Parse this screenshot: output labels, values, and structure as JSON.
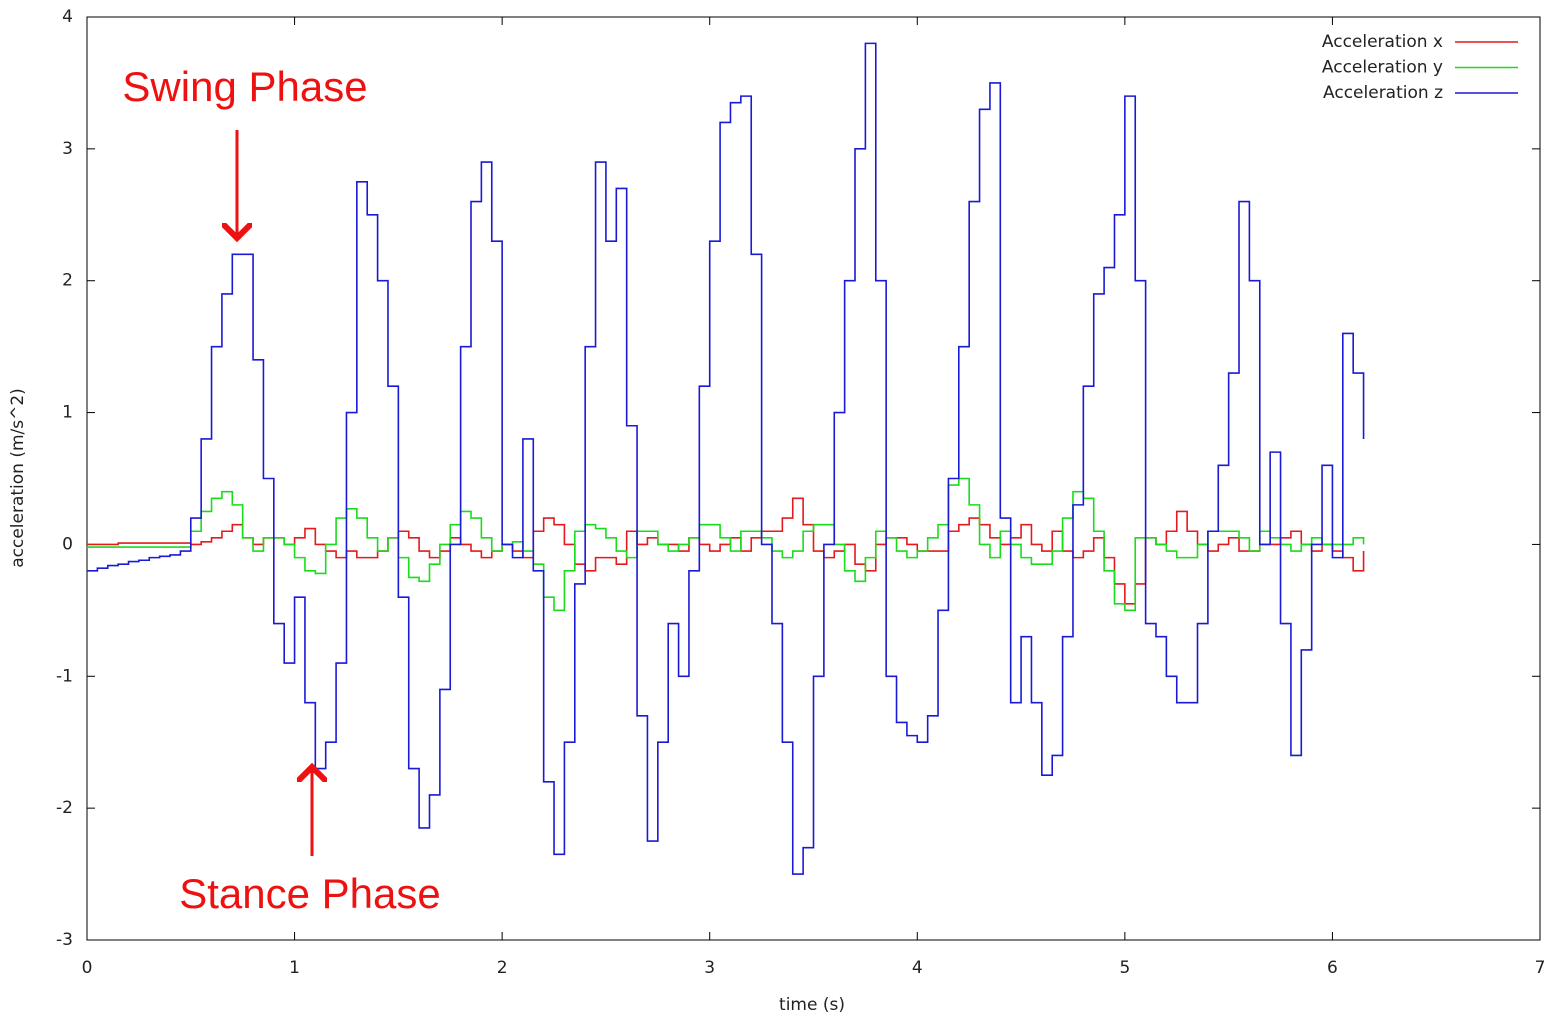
{
  "chart_data": {
    "type": "line",
    "style": "steps",
    "xlabel": "time (s)",
    "ylabel": "acceleration (m/s^2)",
    "xlim": [
      0,
      7
    ],
    "xticks": [
      0,
      1,
      2,
      3,
      4,
      5,
      6,
      7
    ],
    "ylim": [
      -3,
      4
    ],
    "yticks": [
      -3,
      -2,
      -1,
      0,
      1,
      2,
      3,
      4
    ],
    "legend": "top-right",
    "annotations": [
      "Swing Phase",
      "Stance Phase"
    ],
    "annotation_color": "#ee1111",
    "x": [
      0,
      0.05,
      0.1,
      0.15,
      0.2,
      0.25,
      0.3,
      0.35,
      0.4,
      0.45,
      0.5,
      0.55,
      0.6,
      0.65,
      0.7,
      0.75,
      0.8,
      0.85,
      0.9,
      0.95,
      1,
      1.05,
      1.1,
      1.15,
      1.2,
      1.25,
      1.3,
      1.35,
      1.4,
      1.45,
      1.5,
      1.55,
      1.6,
      1.65,
      1.7,
      1.75,
      1.8,
      1.85,
      1.9,
      1.95,
      2,
      2.05,
      2.1,
      2.15,
      2.2,
      2.25,
      2.3,
      2.35,
      2.4,
      2.45,
      2.5,
      2.55,
      2.6,
      2.65,
      2.7,
      2.75,
      2.8,
      2.85,
      2.9,
      2.95,
      3,
      3.05,
      3.1,
      3.15,
      3.2,
      3.25,
      3.3,
      3.35,
      3.4,
      3.45,
      3.5,
      3.55,
      3.6,
      3.65,
      3.7,
      3.75,
      3.8,
      3.85,
      3.9,
      3.95,
      4,
      4.05,
      4.1,
      4.15,
      4.2,
      4.25,
      4.3,
      4.35,
      4.4,
      4.45,
      4.5,
      4.55,
      4.6,
      4.65,
      4.7,
      4.75,
      4.8,
      4.85,
      4.9,
      4.95,
      5,
      5.05,
      5.1,
      5.15,
      5.2,
      5.25,
      5.3,
      5.35,
      5.4,
      5.45,
      5.5,
      5.55,
      5.6,
      5.65,
      5.7,
      5.75,
      5.8,
      5.85,
      5.9,
      5.95,
      6,
      6.05,
      6.1,
      6.15
    ],
    "series": [
      {
        "name": "Acceleration x",
        "color": "#e41a1c",
        "values": [
          0,
          0,
          0,
          0.01,
          0.01,
          0.01,
          0.01,
          0.01,
          0.01,
          0.01,
          0,
          0.02,
          0.05,
          0.1,
          0.15,
          0.05,
          0,
          0.05,
          0.05,
          0,
          0.05,
          0.12,
          0,
          -0.05,
          -0.1,
          -0.05,
          -0.1,
          -0.1,
          -0.05,
          0.05,
          0.1,
          0.05,
          -0.05,
          -0.1,
          -0.05,
          0.05,
          0,
          -0.05,
          -0.1,
          -0.05,
          0,
          -0.05,
          -0.1,
          0.1,
          0.2,
          0.15,
          0,
          -0.15,
          -0.2,
          -0.1,
          -0.1,
          -0.15,
          0.1,
          0,
          0.05,
          0,
          0,
          -0.05,
          0.05,
          0,
          -0.05,
          0,
          0.05,
          -0.05,
          0.05,
          0.1,
          0.1,
          0.2,
          0.35,
          0.15,
          -0.05,
          -0.1,
          -0.05,
          0,
          -0.15,
          -0.2,
          0,
          0.05,
          0.05,
          0,
          -0.05,
          -0.05,
          -0.05,
          0.1,
          0.15,
          0.2,
          0.15,
          0.05,
          0,
          0.05,
          0.15,
          0,
          -0.05,
          0.1,
          -0.05,
          -0.1,
          -0.05,
          0.05,
          -0.1,
          -0.3,
          -0.45,
          -0.3,
          0.05,
          0,
          0.1,
          0.25,
          0.1,
          0,
          -0.05,
          0,
          0.05,
          -0.05,
          -0.05,
          0,
          0,
          0.05,
          0.1,
          0,
          -0.05,
          0,
          -0.05,
          -0.1,
          -0.2,
          -0.05
        ]
      },
      {
        "name": "Acceleration y",
        "color": "#1bdc1b",
        "values": [
          -0.02,
          -0.02,
          -0.02,
          -0.02,
          -0.02,
          -0.02,
          -0.02,
          -0.02,
          -0.02,
          -0.02,
          0.1,
          0.25,
          0.35,
          0.4,
          0.3,
          0.05,
          -0.05,
          0.05,
          0.05,
          0,
          -0.1,
          -0.2,
          -0.22,
          0,
          0.2,
          0.27,
          0.2,
          0.05,
          -0.05,
          0.05,
          -0.1,
          -0.25,
          -0.28,
          -0.15,
          0,
          0.15,
          0.25,
          0.2,
          0.05,
          -0.05,
          0,
          0.02,
          -0.05,
          -0.15,
          -0.4,
          -0.5,
          -0.2,
          0.1,
          0.15,
          0.12,
          0.05,
          -0.05,
          -0.1,
          0.1,
          0.1,
          0,
          -0.05,
          0,
          0.05,
          0.15,
          0.15,
          0.05,
          -0.05,
          0.1,
          0.1,
          0.05,
          -0.05,
          -0.1,
          -0.05,
          0.1,
          0.15,
          0.15,
          0,
          -0.2,
          -0.28,
          -0.1,
          0.1,
          0.05,
          -0.05,
          -0.1,
          -0.05,
          0.05,
          0.15,
          0.45,
          0.5,
          0.3,
          0,
          -0.1,
          0.1,
          0,
          -0.1,
          -0.15,
          -0.15,
          -0.05,
          0.2,
          0.4,
          0.35,
          0.1,
          -0.2,
          -0.45,
          -0.5,
          0.05,
          0.05,
          0,
          -0.05,
          -0.1,
          -0.1,
          0,
          0.1,
          0.1,
          0.1,
          0.05,
          -0.05,
          0.1,
          0.05,
          0,
          -0.05,
          0,
          0.05,
          0,
          0,
          0,
          0.05,
          0
        ]
      },
      {
        "name": "Acceleration z",
        "color": "#1a1ad6",
        "values": [
          -0.2,
          -0.18,
          -0.16,
          -0.15,
          -0.13,
          -0.12,
          -0.1,
          -0.09,
          -0.08,
          -0.05,
          0.2,
          0.8,
          1.5,
          1.9,
          2.2,
          2.2,
          1.4,
          0.5,
          -0.6,
          -0.9,
          -0.4,
          -1.2,
          -1.7,
          -1.5,
          -0.9,
          1,
          2.75,
          2.5,
          2,
          1.2,
          -0.4,
          -1.7,
          -2.15,
          -1.9,
          -1.1,
          0,
          1.5,
          2.6,
          2.9,
          2.3,
          0,
          -0.1,
          0.8,
          -0.2,
          -1.8,
          -2.35,
          -1.5,
          -0.3,
          1.5,
          2.9,
          2.3,
          2.7,
          0.9,
          -1.3,
          -2.25,
          -1.5,
          -0.6,
          -1,
          -0.2,
          1.2,
          2.3,
          3.2,
          3.35,
          3.4,
          2.2,
          0,
          -0.6,
          -1.5,
          -2.5,
          -2.3,
          -1,
          0,
          1,
          2,
          3,
          3.8,
          2,
          -1,
          -1.35,
          -1.45,
          -1.5,
          -1.3,
          -0.5,
          0.5,
          1.5,
          2.6,
          3.3,
          3.5,
          0.2,
          -1.2,
          -0.7,
          -1.2,
          -1.75,
          -1.6,
          -0.7,
          0.3,
          1.2,
          1.9,
          2.1,
          2.5,
          3.4,
          2,
          -0.6,
          -0.7,
          -1,
          -1.2,
          -1.2,
          -0.6,
          0.1,
          0.6,
          1.3,
          2.6,
          2,
          0,
          0.7,
          -0.6,
          -1.6,
          -0.8,
          0,
          0.6,
          -0.1,
          1.6,
          1.3,
          0.8
        ]
      }
    ]
  }
}
